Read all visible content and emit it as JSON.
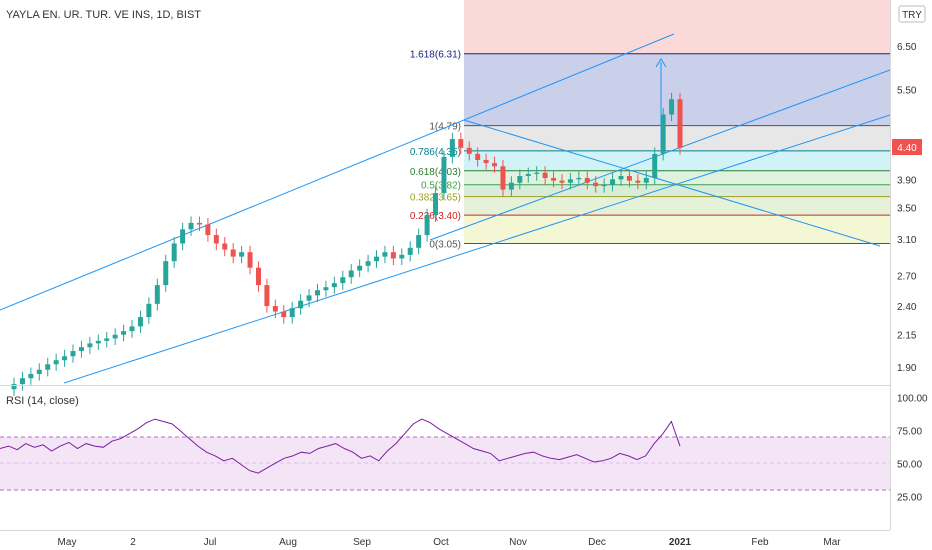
{
  "header": {
    "symbol_title": "YAYLA EN. UR. TUR. VE INS, 1D, BIST",
    "currency": "TRY"
  },
  "price_axis": {
    "ticks": [
      "6.50",
      "5.50",
      "4.40",
      "3.90",
      "3.50",
      "3.10",
      "2.70",
      "2.40",
      "2.15",
      "1.90"
    ],
    "current_price": "4.40",
    "current_price_color": "#ef5350"
  },
  "time_axis": {
    "labels": [
      "May",
      "2",
      "Jul",
      "Aug",
      "Sep",
      "Oct",
      "Nov",
      "Dec",
      "2021",
      "Feb",
      "Mar"
    ]
  },
  "fib": {
    "levels": [
      {
        "label": "1.618(6.31)",
        "ratio": 1.618,
        "price": 6.31,
        "color": "#1a237e"
      },
      {
        "label": "1(4.79)",
        "ratio": 1,
        "price": 4.79,
        "color": "#555555"
      },
      {
        "label": "0.786(4.35)",
        "ratio": 0.786,
        "price": 4.35,
        "color": "#00838f"
      },
      {
        "label": "0.618(4.03)",
        "ratio": 0.618,
        "price": 4.03,
        "color": "#2e7d32"
      },
      {
        "label": "0.5(3.82)",
        "ratio": 0.5,
        "price": 3.82,
        "color": "#43a047"
      },
      {
        "label": "0.382(3.65)",
        "ratio": 0.382,
        "price": 3.65,
        "color": "#9e9d24"
      },
      {
        "label": "0.236(3.40)",
        "ratio": 0.236,
        "price": 3.4,
        "color": "#c62828"
      },
      {
        "label": "0(3.05)",
        "ratio": 0,
        "price": 3.05,
        "color": "#555555"
      }
    ]
  },
  "rsi": {
    "title": "RSI (14, close)",
    "ticks": [
      "100.00",
      "75.00",
      "50.00",
      "25.00"
    ],
    "upper": 70,
    "lower": 30
  },
  "colors": {
    "up": "#26a69a",
    "down": "#ef5350",
    "channel": "#2196f3",
    "rsi_line": "#7b1fa2",
    "rsi_band": "#f3e5f5"
  },
  "chart_data": {
    "type": "candlestick",
    "ohlc_closes_approx": [
      1.78,
      1.82,
      1.85,
      1.88,
      1.92,
      1.95,
      1.98,
      2.02,
      2.05,
      2.08,
      2.1,
      2.12,
      2.15,
      2.18,
      2.22,
      2.3,
      2.42,
      2.6,
      2.85,
      3.05,
      3.22,
      3.3,
      3.28,
      3.15,
      3.05,
      2.98,
      2.9,
      2.95,
      2.78,
      2.6,
      2.4,
      2.35,
      2.3,
      2.38,
      2.45,
      2.5,
      2.55,
      2.58,
      2.62,
      2.68,
      2.75,
      2.8,
      2.85,
      2.9,
      2.95,
      2.88,
      2.92,
      3.0,
      3.15,
      3.4,
      3.7,
      4.25,
      4.55,
      4.4,
      4.3,
      4.2,
      4.15,
      4.1,
      3.75,
      3.85,
      3.95,
      3.98,
      4.0,
      3.92,
      3.88,
      3.85,
      3.9,
      3.92,
      3.85,
      3.8,
      3.82,
      3.9,
      3.95,
      3.88,
      3.85,
      3.92,
      4.3,
      5.0,
      5.3,
      4.4
    ],
    "rsi_values_approx": [
      58,
      60,
      57,
      62,
      59,
      61,
      56,
      60,
      63,
      58,
      62,
      60,
      59,
      64,
      66,
      70,
      74,
      79,
      82,
      80,
      78,
      72,
      66,
      60,
      55,
      52,
      48,
      50,
      45,
      40,
      38,
      42,
      46,
      50,
      52,
      55,
      54,
      58,
      60,
      62,
      58,
      55,
      50,
      52,
      48,
      56,
      62,
      70,
      78,
      82,
      79,
      74,
      70,
      66,
      62,
      58,
      56,
      54,
      48,
      50,
      52,
      54,
      55,
      52,
      50,
      49,
      51,
      53,
      50,
      47,
      48,
      50,
      54,
      52,
      49,
      52,
      62,
      70,
      80,
      60
    ],
    "price_axis_ticks": [
      6.5,
      5.5,
      4.4,
      3.9,
      3.5,
      3.1,
      2.7,
      2.4,
      2.15,
      1.9
    ],
    "rsi_axis_ticks": [
      100,
      75,
      50,
      25
    ],
    "x_categories": [
      "May",
      "2",
      "Jul",
      "Aug",
      "Sep",
      "Oct",
      "Nov",
      "Dec",
      "2021",
      "Feb",
      "Mar"
    ],
    "fib_levels": [
      6.31,
      4.79,
      4.35,
      4.03,
      3.82,
      3.65,
      3.4,
      3.05
    ],
    "last_price": 4.4,
    "log_scale": true,
    "grid": false
  }
}
